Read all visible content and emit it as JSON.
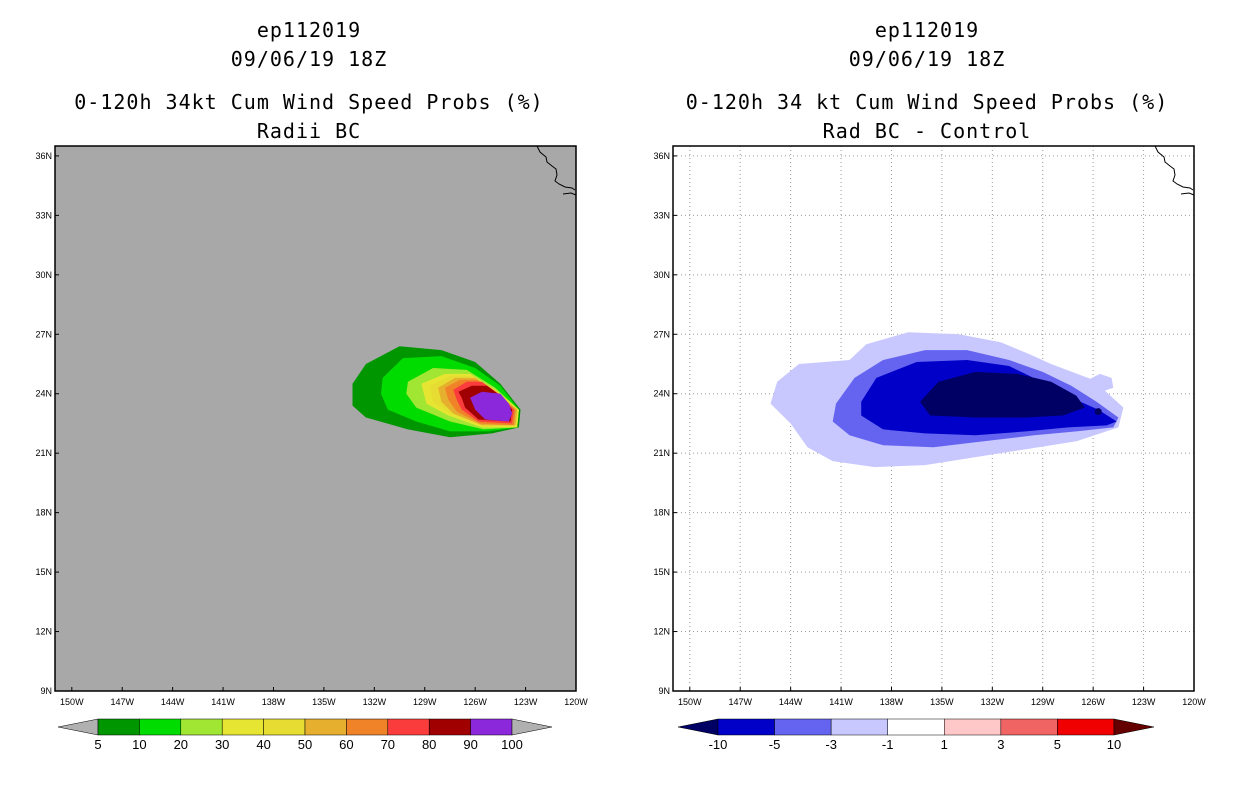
{
  "chart_data": [
    {
      "type": "heatmap",
      "storm_id": "ep112019",
      "datetime": "09/06/19 18Z",
      "title": "0-120h 34kt Cum Wind Speed Probs (%)",
      "subtitle": "Radii BC",
      "xlabel": "",
      "ylabel": "",
      "x_ticks": [
        "150W",
        "147W",
        "144W",
        "141W",
        "138W",
        "135W",
        "132W",
        "129W",
        "126W",
        "123W",
        "120W"
      ],
      "y_ticks": [
        "9N",
        "12N",
        "15N",
        "18N",
        "21N",
        "24N",
        "27N",
        "30N",
        "33N",
        "36N"
      ],
      "xlim": [
        -151,
        -120
      ],
      "ylim": [
        9,
        36.5
      ],
      "grid": false,
      "background_color": "#a8a8a8",
      "colorbar": {
        "labels": [
          "5",
          "10",
          "20",
          "30",
          "40",
          "50",
          "60",
          "70",
          "80",
          "90",
          "100"
        ],
        "colors": [
          "#009600",
          "#00dc00",
          "#a0e632",
          "#e6e632",
          "#e6dc32",
          "#e6af2d",
          "#f08228",
          "#fa3c3c",
          "#a00000",
          "#8c28dc"
        ],
        "end_color": "#b0b0b0"
      },
      "contours": [
        {
          "level": 5,
          "color": "#009600",
          "points": [
            [
              -132.5,
              25.5
            ],
            [
              -130.5,
              26.4
            ],
            [
              -128,
              26.2
            ],
            [
              -126,
              25.6
            ],
            [
              -124.5,
              24.5
            ],
            [
              -123.3,
              23.2
            ],
            [
              -123.4,
              22.3
            ],
            [
              -125,
              22
            ],
            [
              -127.5,
              21.8
            ],
            [
              -130,
              22.2
            ],
            [
              -132.5,
              22.8
            ],
            [
              -133.3,
              23.4
            ],
            [
              -133.3,
              24.5
            ]
          ]
        },
        {
          "level": 10,
          "color": "#00dc00",
          "points": [
            [
              -131.5,
              24.8
            ],
            [
              -130.3,
              25.8
            ],
            [
              -128,
              25.9
            ],
            [
              -126,
              25.3
            ],
            [
              -124.5,
              24.4
            ],
            [
              -123.4,
              23.2
            ],
            [
              -123.5,
              22.3
            ],
            [
              -125.2,
              22.1
            ],
            [
              -127.5,
              22.1
            ],
            [
              -129.5,
              22.6
            ],
            [
              -131.2,
              23.2
            ],
            [
              -131.6,
              24
            ]
          ]
        },
        {
          "level": 20,
          "color": "#a0e632",
          "points": [
            [
              -130,
              24.6
            ],
            [
              -128.5,
              25.3
            ],
            [
              -126.5,
              25.2
            ],
            [
              -124.8,
              24.3
            ],
            [
              -123.4,
              23.2
            ],
            [
              -123.5,
              22.3
            ],
            [
              -125.5,
              22.2
            ],
            [
              -127.5,
              22.6
            ],
            [
              -129.5,
              23.3
            ],
            [
              -130.1,
              24
            ]
          ]
        },
        {
          "level": 30,
          "color": "#e6e632",
          "points": [
            [
              -129.2,
              24.5
            ],
            [
              -127.8,
              25
            ],
            [
              -126.3,
              25
            ],
            [
              -124.8,
              24.2
            ],
            [
              -123.4,
              23.2
            ],
            [
              -123.5,
              22.3
            ],
            [
              -125.6,
              22.3
            ],
            [
              -127.6,
              22.9
            ],
            [
              -128.9,
              23.5
            ]
          ]
        },
        {
          "level": 40,
          "color": "#e6dc32",
          "points": [
            [
              -128.7,
              24.4
            ],
            [
              -127.5,
              24.9
            ],
            [
              -126.2,
              24.9
            ],
            [
              -124.8,
              24.2
            ],
            [
              -123.5,
              23.2
            ],
            [
              -123.6,
              22.4
            ],
            [
              -125.6,
              22.4
            ],
            [
              -127.5,
              23
            ],
            [
              -128.5,
              23.6
            ]
          ]
        },
        {
          "level": 50,
          "color": "#e6af2d",
          "points": [
            [
              -128.2,
              24.3
            ],
            [
              -127.2,
              24.8
            ],
            [
              -126,
              24.8
            ],
            [
              -124.8,
              24.1
            ],
            [
              -123.5,
              23.2
            ],
            [
              -123.6,
              22.4
            ],
            [
              -125.6,
              22.4
            ],
            [
              -127.3,
              23
            ],
            [
              -128,
              23.6
            ]
          ]
        },
        {
          "level": 60,
          "color": "#f08228",
          "points": [
            [
              -127.8,
              24.3
            ],
            [
              -126.9,
              24.7
            ],
            [
              -125.9,
              24.7
            ],
            [
              -124.8,
              24.1
            ],
            [
              -123.6,
              23.2
            ],
            [
              -123.7,
              22.4
            ],
            [
              -125.7,
              22.5
            ],
            [
              -127.1,
              23.1
            ],
            [
              -127.6,
              23.7
            ]
          ]
        },
        {
          "level": 70,
          "color": "#fa3c3c",
          "points": [
            [
              -127.3,
              24.2
            ],
            [
              -126.5,
              24.6
            ],
            [
              -125.6,
              24.6
            ],
            [
              -124.6,
              24
            ],
            [
              -123.7,
              23.2
            ],
            [
              -123.8,
              22.5
            ],
            [
              -125.8,
              22.6
            ],
            [
              -126.8,
              23.2
            ],
            [
              -127.1,
              23.7
            ]
          ]
        },
        {
          "level": 80,
          "color": "#a00000",
          "points": [
            [
              -127,
              24.1
            ],
            [
              -126.2,
              24.4
            ],
            [
              -125.3,
              24.4
            ],
            [
              -124.5,
              23.9
            ],
            [
              -123.8,
              23.2
            ],
            [
              -123.9,
              22.6
            ],
            [
              -125.8,
              22.7
            ],
            [
              -126.6,
              23.3
            ],
            [
              -126.8,
              23.8
            ]
          ]
        },
        {
          "level": 90,
          "color": "#8c28dc",
          "points": [
            [
              -126.3,
              23.8
            ],
            [
              -125.6,
              24.1
            ],
            [
              -124.5,
              24
            ],
            [
              -124,
              23.5
            ],
            [
              -123.8,
              23
            ],
            [
              -124,
              22.6
            ],
            [
              -125.4,
              22.7
            ],
            [
              -126,
              23.2
            ]
          ]
        }
      ]
    },
    {
      "type": "heatmap",
      "storm_id": "ep112019",
      "datetime": "09/06/19 18Z",
      "title": "0-120h 34 kt Cum Wind Speed Probs (%)",
      "subtitle": "Rad BC - Control",
      "xlabel": "",
      "ylabel": "",
      "x_ticks": [
        "150W",
        "147W",
        "144W",
        "141W",
        "138W",
        "135W",
        "132W",
        "129W",
        "126W",
        "123W",
        "120W"
      ],
      "y_ticks": [
        "9N",
        "12N",
        "15N",
        "18N",
        "21N",
        "24N",
        "27N",
        "30N",
        "33N",
        "36N"
      ],
      "xlim": [
        -151,
        -120
      ],
      "ylim": [
        9,
        36.5
      ],
      "grid": true,
      "background_color": "#ffffff",
      "colorbar": {
        "labels": [
          "-10",
          "-5",
          "-3",
          "-1",
          "1",
          "3",
          "5",
          "10"
        ],
        "colors": [
          "#0000c8",
          "#6464f0",
          "#c8c8ff",
          "#ffffff",
          "#ffc8c8",
          "#f06464",
          "#f00000"
        ],
        "low_end_color": "#000064",
        "high_end_color": "#640000"
      },
      "contours": [
        {
          "level": -1,
          "color": "#c8c8ff",
          "points": [
            [
              -144.8,
              24.6
            ],
            [
              -143.5,
              25.5
            ],
            [
              -140.5,
              25.7
            ],
            [
              -139.5,
              26.5
            ],
            [
              -137,
              27.1
            ],
            [
              -134,
              27
            ],
            [
              -131.5,
              26.6
            ],
            [
              -129.8,
              26
            ],
            [
              -128.5,
              25.5
            ],
            [
              -126,
              24.7
            ],
            [
              -124.2,
              23.3
            ],
            [
              -124.5,
              22.3
            ],
            [
              -127,
              21.6
            ],
            [
              -130,
              21.2
            ],
            [
              -133,
              20.8
            ],
            [
              -136,
              20.4
            ],
            [
              -139,
              20.3
            ],
            [
              -141.5,
              20.6
            ],
            [
              -143,
              21.3
            ],
            [
              -144,
              22.5
            ],
            [
              -145.2,
              23.5
            ]
          ]
        },
        {
          "level": -1,
          "color": "#c8c8ff",
          "points": [
            [
              -126.3,
              24.7
            ],
            [
              -125.6,
              25
            ],
            [
              -124.9,
              24.8
            ],
            [
              -124.8,
              24.3
            ],
            [
              -125.5,
              24.1
            ],
            [
              -126.2,
              24.3
            ]
          ]
        },
        {
          "level": -3,
          "color": "#6464f0",
          "points": [
            [
              -141.3,
              23.5
            ],
            [
              -140.2,
              24.8
            ],
            [
              -138.5,
              25.7
            ],
            [
              -136,
              26.2
            ],
            [
              -133.5,
              26.2
            ],
            [
              -131,
              25.7
            ],
            [
              -129,
              25.1
            ],
            [
              -127.3,
              24.4
            ],
            [
              -125.8,
              23.6
            ],
            [
              -124.5,
              22.8
            ],
            [
              -124.8,
              22.3
            ],
            [
              -127,
              22.1
            ],
            [
              -129.5,
              21.9
            ],
            [
              -132.5,
              21.6
            ],
            [
              -135.5,
              21.3
            ],
            [
              -138.5,
              21.4
            ],
            [
              -140.5,
              21.9
            ],
            [
              -141.5,
              22.6
            ]
          ]
        },
        {
          "level": -5,
          "color": "#0000c8",
          "points": [
            [
              -139.8,
              23.6
            ],
            [
              -138.9,
              24.8
            ],
            [
              -136.5,
              25.6
            ],
            [
              -133.5,
              25.7
            ],
            [
              -131,
              25.4
            ],
            [
              -129.3,
              24.7
            ],
            [
              -127.3,
              23.8
            ],
            [
              -125.7,
              23.2
            ],
            [
              -124.6,
              22.6
            ],
            [
              -125.2,
              22.4
            ],
            [
              -127.5,
              22.3
            ],
            [
              -130,
              22.1
            ],
            [
              -133,
              21.9
            ],
            [
              -136,
              22
            ],
            [
              -138.5,
              22.2
            ],
            [
              -139.8,
              22.9
            ]
          ]
        },
        {
          "level": -10,
          "color": "#000064",
          "points": [
            [
              -136.3,
              23.6
            ],
            [
              -135.2,
              24.6
            ],
            [
              -133,
              25.1
            ],
            [
              -130.5,
              25
            ],
            [
              -128.5,
              24.6
            ],
            [
              -127,
              23.9
            ],
            [
              -126.5,
              23.3
            ],
            [
              -127.8,
              22.9
            ],
            [
              -130,
              22.8
            ],
            [
              -133,
              22.8
            ],
            [
              -135.7,
              22.9
            ]
          ]
        }
      ],
      "extra_points": [
        [
          -125.7,
          23.1
        ]
      ]
    }
  ]
}
